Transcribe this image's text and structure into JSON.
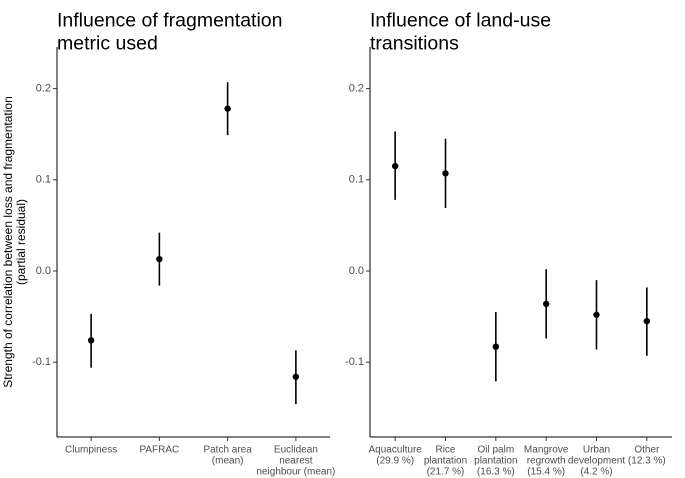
{
  "ylabel_lines": [
    "Strength of correlation between loss and fragmentation",
    "(partial residual)"
  ],
  "chart_data": [
    {
      "type": "scatter",
      "title_lines": [
        "Influence of fragmentation",
        "metric used"
      ],
      "ylim": [
        -0.18,
        0.24
      ],
      "yticks": [
        -0.1,
        0.0,
        0.1,
        0.2
      ],
      "ytick_labels": [
        "-0.1",
        "0.0",
        "0.1",
        "0.2"
      ],
      "grid": false,
      "categories": [
        {
          "lines": [
            "Clumpiness"
          ],
          "value": -0.076,
          "lower": -0.106,
          "upper": -0.047
        },
        {
          "lines": [
            "PAFRAC"
          ],
          "value": 0.013,
          "lower": -0.016,
          "upper": 0.042
        },
        {
          "lines": [
            "Patch area",
            "(mean)"
          ],
          "value": 0.178,
          "lower": 0.149,
          "upper": 0.207
        },
        {
          "lines": [
            "Euclidean",
            "nearest",
            "neighbour (mean)"
          ],
          "value": -0.116,
          "lower": -0.146,
          "upper": -0.087
        }
      ]
    },
    {
      "type": "scatter",
      "title_lines": [
        "Influence of land-use",
        "transitions"
      ],
      "ylim": [
        -0.18,
        0.24
      ],
      "yticks": [
        -0.1,
        0.0,
        0.1,
        0.2
      ],
      "ytick_labels": [
        "-0.1",
        "0.0",
        "0.1",
        "0.2"
      ],
      "grid": false,
      "categories": [
        {
          "lines": [
            "Aquaculture",
            "(29.9 %)"
          ],
          "value": 0.115,
          "lower": 0.078,
          "upper": 0.153
        },
        {
          "lines": [
            "Rice",
            "plantation",
            "(21.7 %)"
          ],
          "value": 0.107,
          "lower": 0.069,
          "upper": 0.145
        },
        {
          "lines": [
            "Oil palm",
            "plantation",
            "(16.3 %)"
          ],
          "value": -0.083,
          "lower": -0.121,
          "upper": -0.045
        },
        {
          "lines": [
            "Mangrove",
            "regrowth",
            "(15.4 %)"
          ],
          "value": -0.036,
          "lower": -0.074,
          "upper": 0.002
        },
        {
          "lines": [
            "Urban",
            "development",
            "(4.2 %)"
          ],
          "value": -0.048,
          "lower": -0.086,
          "upper": -0.01
        },
        {
          "lines": [
            "Other",
            "(12.3 %)"
          ],
          "value": -0.055,
          "lower": -0.093,
          "upper": -0.018
        }
      ]
    }
  ]
}
